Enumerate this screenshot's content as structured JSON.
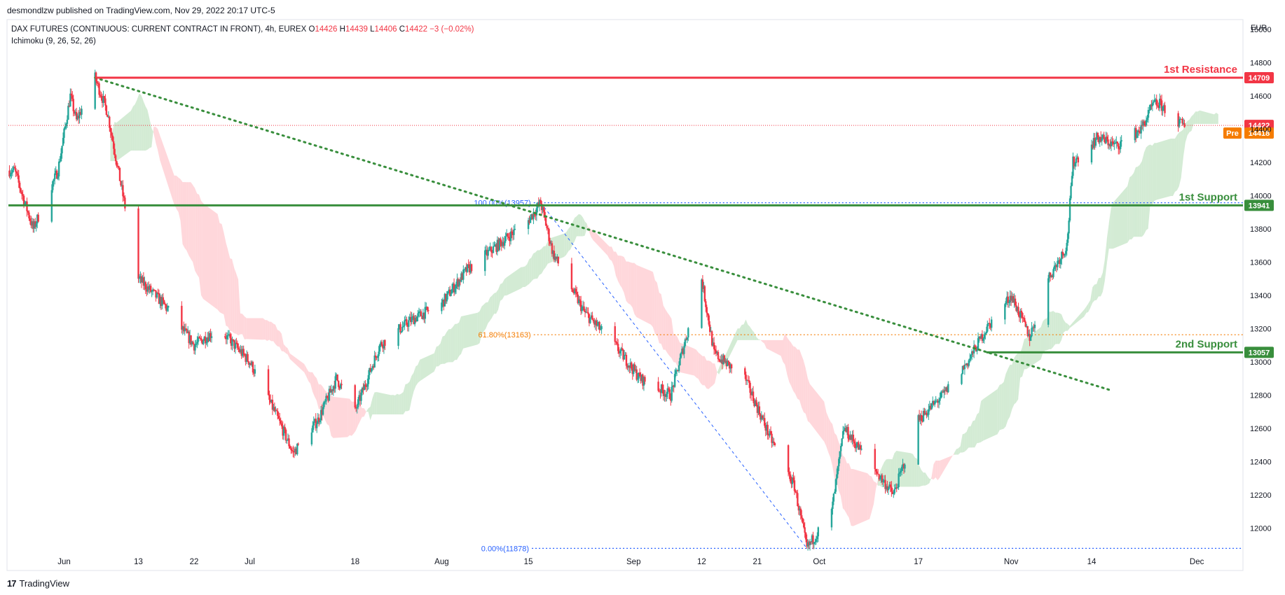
{
  "header": {
    "published": "desmondlzw published on TradingView.com, Nov 29, 2022 20:17 UTC-5",
    "currency": "EUR"
  },
  "legend": {
    "symbol": "DAX FUTURES (CONTINUOUS: CURRENT CONTRACT IN FRONT), 4h, EUREX",
    "o_label": "O",
    "o_value": "14426",
    "h_label": "H",
    "h_value": "14439",
    "l_label": "L",
    "l_value": "14406",
    "c_label": "C",
    "c_value": "14422",
    "change": "−3 (−0.02%)",
    "indicator": "Ichimoku (9, 26, 52, 26)"
  },
  "footer": {
    "brand": "TradingView",
    "logo": "17"
  },
  "colors": {
    "up": "#26a69a",
    "down": "#f23645",
    "resistance": "#f23645",
    "support": "#388e3c",
    "trend": "#388e3c",
    "cloud_bull": "#c8e6c9",
    "cloud_bear": "#ffcdd2",
    "fib": "#2962ff",
    "fib618": "#f57c00",
    "pre": "#f57c00"
  },
  "chart_data": {
    "type": "candlestick",
    "title": "",
    "y_axis": {
      "min": 11850,
      "max": 15050,
      "ticks": [
        12000,
        12200,
        12400,
        12600,
        12800,
        13000,
        13200,
        13400,
        13600,
        13800,
        14000,
        14200,
        14400,
        14600,
        14800,
        15000
      ]
    },
    "x_axis": {
      "labels": [
        "Jun",
        "13",
        "22",
        "Jul",
        "18",
        "Aug",
        "15",
        "Sep",
        "12",
        "21",
        "Oct",
        "17",
        "Nov",
        "14",
        "Dec"
      ]
    },
    "price_path_approx": [
      [
        "May 24",
        14150
      ],
      [
        "May 27",
        13800
      ],
      [
        "May 31",
        14150
      ],
      [
        "Jun 2",
        14600
      ],
      [
        "Jun 3",
        14450
      ],
      [
        "Jun 6",
        14709
      ],
      [
        "Jun 8",
        14500
      ],
      [
        "Jun 10",
        14100
      ],
      [
        "Jun 12",
        13700
      ],
      [
        "Jun 13",
        13500
      ],
      [
        "Jun 17",
        13350
      ],
      [
        "Jun 22",
        13100
      ],
      [
        "Jun 26",
        13200
      ],
      [
        "Jul 1",
        13000
      ],
      [
        "Jul 5",
        12700
      ],
      [
        "Jul 8",
        12450
      ],
      [
        "Jul 12",
        12650
      ],
      [
        "Jul 15",
        12900
      ],
      [
        "Jul 18",
        12700
      ],
      [
        "Jul 22",
        13100
      ],
      [
        "Jul 27",
        13250
      ],
      [
        "Aug 1",
        13350
      ],
      [
        "Aug 5",
        13550
      ],
      [
        "Aug 10",
        13700
      ],
      [
        "Aug 15",
        13850
      ],
      [
        "Aug 17",
        13957
      ],
      [
        "Aug 19",
        13650
      ],
      [
        "Aug 24",
        13300
      ],
      [
        "Aug 29",
        13100
      ],
      [
        "Sep 2",
        12900
      ],
      [
        "Sep 7",
        12800
      ],
      [
        "Sep 12",
        13500
      ],
      [
        "Sep 14",
        13050
      ],
      [
        "Sep 19",
        12900
      ],
      [
        "Sep 23",
        12550
      ],
      [
        "Sep 27",
        12250
      ],
      [
        "Sep 29",
        11878
      ],
      [
        "Oct 3",
        12100
      ],
      [
        "Oct 5",
        12600
      ],
      [
        "Oct 10",
        12350
      ],
      [
        "Oct 13",
        12200
      ],
      [
        "Oct 17",
        12650
      ],
      [
        "Oct 21",
        12800
      ],
      [
        "Oct 25",
        13000
      ],
      [
        "Oct 28",
        13200
      ],
      [
        "Nov 1",
        13400
      ],
      [
        "Nov 4",
        13150
      ],
      [
        "Nov 7",
        13500
      ],
      [
        "Nov 10",
        13700
      ],
      [
        "Nov 11",
        14200
      ],
      [
        "Nov 15",
        14350
      ],
      [
        "Nov 18",
        14300
      ],
      [
        "Nov 22",
        14400
      ],
      [
        "Nov 24",
        14550
      ],
      [
        "Nov 25",
        14550
      ],
      [
        "Nov 28",
        14440
      ],
      [
        "Nov 29",
        14422
      ]
    ],
    "levels": [
      {
        "name": "1st Resistance",
        "value": 14709
      },
      {
        "name": "1st Support",
        "value": 13941
      },
      {
        "name": "2nd Support",
        "value": 13057
      }
    ],
    "last_price": {
      "value": 14422
    },
    "pre_market": {
      "label": "Pre",
      "value": 14418
    },
    "fibonacci": [
      {
        "label": "100.00%(13957)",
        "value": 13957
      },
      {
        "label": "61.80%(13163)",
        "value": 13163
      },
      {
        "label": "0.00%(11878)",
        "value": 11878
      }
    ],
    "trendline": {
      "from": [
        "Jun 6",
        14709
      ],
      "to": [
        "Nov 17",
        12830
      ]
    },
    "grid": false
  }
}
